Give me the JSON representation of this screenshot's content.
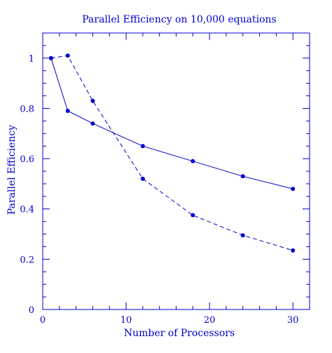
{
  "chart_data": {
    "type": "line",
    "title": "Parallel Efficiency on 10,000 equations",
    "xlabel": "Number of Processors",
    "ylabel": "Parallel Efficiency",
    "xlim": [
      0,
      32
    ],
    "ylim": [
      0,
      1.1
    ],
    "xticks_major": [
      0,
      10,
      20,
      30
    ],
    "xtick_labels": [
      "0",
      "10",
      "20",
      "30"
    ],
    "yticks_major": [
      0,
      0.2,
      0.4,
      0.6,
      0.8,
      1
    ],
    "ytick_labels": [
      "0",
      "0.2",
      "0.4",
      "0.6",
      "0.8",
      "1"
    ],
    "grid": false,
    "color": "#0000cc",
    "series": [
      {
        "style": "solid",
        "x": [
          1,
          3,
          6,
          12,
          18,
          24,
          30
        ],
        "y": [
          1.0,
          0.79,
          0.74,
          0.65,
          0.59,
          0.53,
          0.48
        ]
      },
      {
        "style": "dashed",
        "x": [
          1,
          3,
          6,
          12,
          18,
          24,
          30
        ],
        "y": [
          1.0,
          1.01,
          0.83,
          0.52,
          0.375,
          0.295,
          0.235
        ]
      }
    ]
  }
}
